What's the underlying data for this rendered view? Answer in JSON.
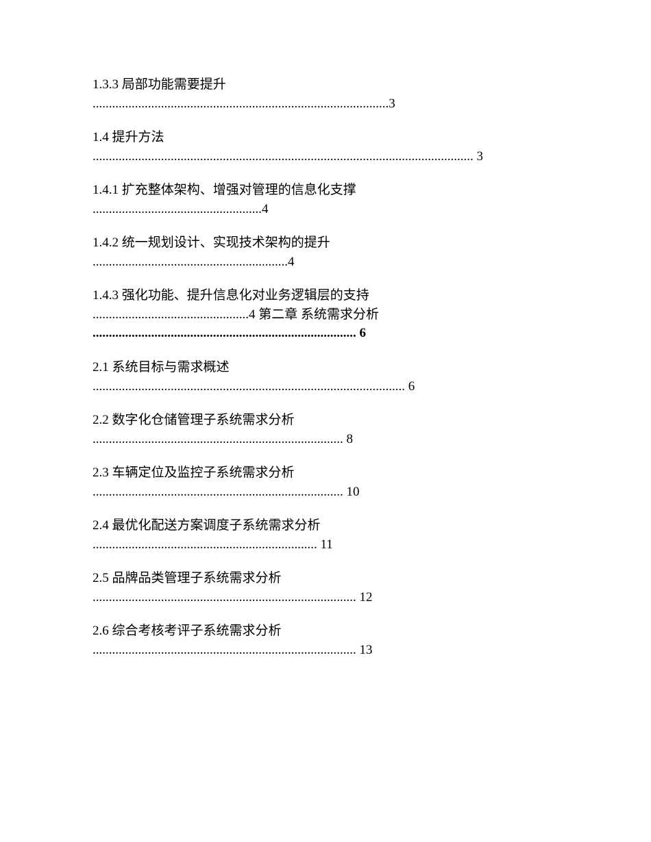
{
  "toc": {
    "entries": [
      {
        "title": "1.3.3 局部功能需要提升",
        "dots": "...........................................................................................3",
        "bold": false
      },
      {
        "title": "1.4 提升方法",
        "dots": "..................................................................................................................... 3",
        "bold": false
      },
      {
        "title": "1.4.1 扩充整体架构、增强对管理的信息化支撑",
        "dots": "....................................................4",
        "bold": false
      },
      {
        "title": "1.4.2 统一规划设计、实现技术架构的提升",
        "dots": "............................................................4",
        "bold": false
      },
      {
        "title": "1.4.3 强化功能、提升信息化对业务逻辑层的支持",
        "dots": "................................................4",
        "chapter": "第二章 系统需求分析",
        "chapter_dots": "................................................................................. 6",
        "bold_chapter": true
      },
      {
        "title": "2.1 系统目标与需求概述",
        "dots": "................................................................................................ 6",
        "bold": false
      },
      {
        "title": "2.2 数字化仓储管理子系统需求分析",
        "dots": "............................................................................. 8",
        "bold": false
      },
      {
        "title": "2.3 车辆定位及监控子系统需求分析",
        "dots": "............................................................................. 10",
        "bold": false
      },
      {
        "title": "2.4 最优化配送方案调度子系统需求分析",
        "dots": "..................................................................... 11",
        "bold": false
      },
      {
        "title": "2.5 品牌品类管理子系统需求分析",
        "dots": "................................................................................. 12",
        "bold": false
      },
      {
        "title": "2.6 综合考核考评子系统需求分析",
        "dots": "................................................................................. 13",
        "bold": false
      }
    ]
  }
}
